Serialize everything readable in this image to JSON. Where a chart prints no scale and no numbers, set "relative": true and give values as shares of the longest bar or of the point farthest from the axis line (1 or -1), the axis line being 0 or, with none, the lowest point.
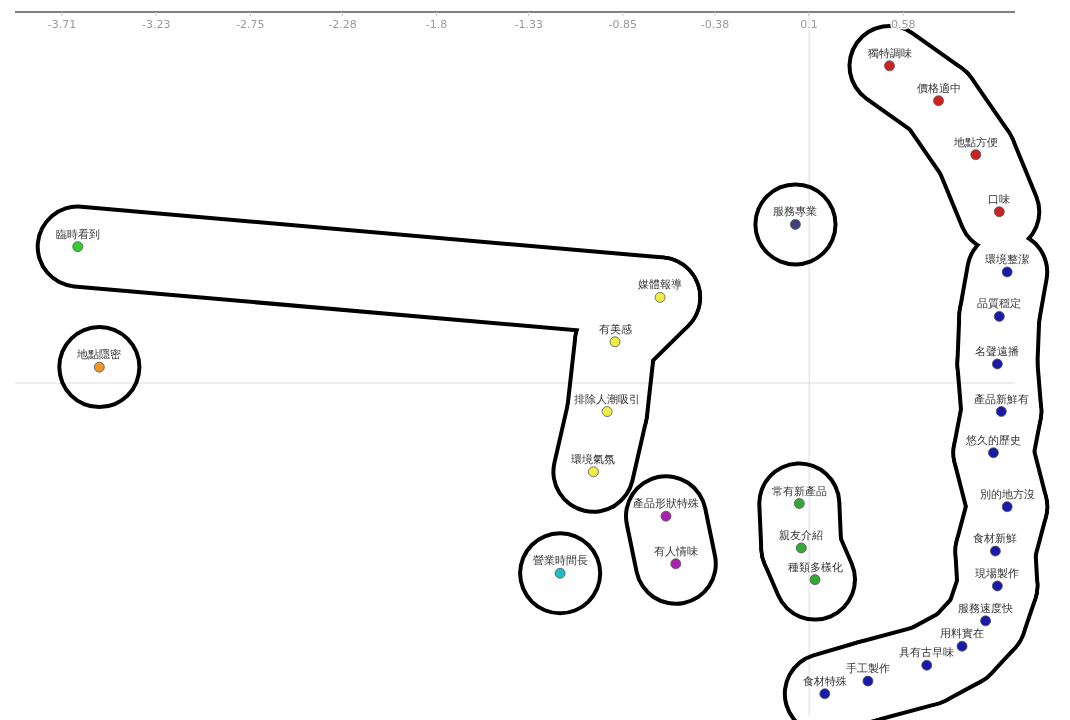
{
  "chart_data": {
    "type": "scatter",
    "relative": true,
    "marker": "circle",
    "tick_labels": "x",
    "xlim": [
      -3.95,
      1.15
    ],
    "xticks": [
      -3.71,
      -3.23,
      -2.75,
      -2.28,
      -1.8,
      -1.33,
      -0.85,
      -0.38,
      0.1,
      0.58
    ],
    "ref_lines": [
      {
        "axis": "x",
        "value": 0.1,
        "color": "#dddddd"
      }
    ],
    "series": [
      {
        "color": "#cc2222",
        "x": [
          0.51,
          0.76,
          0.95,
          1.07
        ],
        "values": [
          1.0,
          0.89,
          0.72,
          0.54
        ]
      },
      {
        "color": "#404080",
        "x": [
          0.03
        ],
        "values": [
          0.5
        ]
      },
      {
        "colors": [
          "#33cc33",
          "#eeee44",
          "#eeee44",
          "#eeee44",
          "#eeee44"
        ],
        "x": [
          -3.63,
          -0.66,
          -0.89,
          -0.93,
          -1.0
        ],
        "values": [
          0.43,
          0.27,
          0.13,
          -0.09,
          -0.28
        ]
      },
      {
        "color": "#ee9922",
        "x": [
          -3.52
        ],
        "values": [
          0.05
        ]
      },
      {
        "color": "#aa22aa",
        "x": [
          -0.63,
          -0.58
        ],
        "values": [
          -0.42,
          -0.57
        ]
      },
      {
        "color": "#22bbcc",
        "x": [
          -1.17
        ],
        "values": [
          -0.6
        ]
      },
      {
        "color": "#33aa33",
        "x": [
          0.05,
          0.06,
          0.13
        ],
        "values": [
          -0.38,
          -0.52,
          -0.62
        ]
      },
      {
        "color": "#1a1aaa",
        "x": [
          1.11,
          1.07,
          1.06,
          1.08,
          1.04,
          1.11,
          1.05,
          1.06,
          1.0,
          0.88,
          0.7,
          0.4,
          0.18
        ],
        "values": [
          0.35,
          0.21,
          0.06,
          -0.09,
          -0.22,
          -0.39,
          -0.53,
          -0.64,
          -0.75,
          -0.83,
          -0.89,
          -0.94,
          -0.98
        ]
      }
    ],
    "annotations": [
      {
        "text": "獨特調味",
        "x": 0.51,
        "y": 1.0
      },
      {
        "text": "價格適中",
        "x": 0.76,
        "y": 0.89
      },
      {
        "text": "地點方便",
        "x": 0.95,
        "y": 0.72
      },
      {
        "text": "口味",
        "x": 1.07,
        "y": 0.54
      },
      {
        "text": "服務專業",
        "x": 0.03,
        "y": 0.5
      },
      {
        "text": "臨時看到",
        "x": -3.63,
        "y": 0.43
      },
      {
        "text": "媒體報導",
        "x": -0.66,
        "y": 0.27
      },
      {
        "text": "有美感",
        "x": -0.89,
        "y": 0.13
      },
      {
        "text": "排除人潮吸引",
        "x": -0.93,
        "y": -0.09
      },
      {
        "text": "環境氣氛",
        "x": -1.0,
        "y": -0.28
      },
      {
        "text": "地點隱密",
        "x": -3.52,
        "y": 0.05
      },
      {
        "text": "產品形狀特殊",
        "x": -0.63,
        "y": -0.42
      },
      {
        "text": "有人情味",
        "x": -0.58,
        "y": -0.57
      },
      {
        "text": "營業時間長",
        "x": -1.17,
        "y": -0.6
      },
      {
        "text": "常有新產品",
        "x": 0.05,
        "y": -0.38
      },
      {
        "text": "親友介紹",
        "x": 0.06,
        "y": -0.52
      },
      {
        "text": "種類多樣化",
        "x": 0.13,
        "y": -0.62
      },
      {
        "text": "環境整潔",
        "x": 1.11,
        "y": 0.35
      },
      {
        "text": "品質穩定",
        "x": 1.07,
        "y": 0.21
      },
      {
        "text": "名聲遠播",
        "x": 1.06,
        "y": 0.06
      },
      {
        "text": "產品新鮮有",
        "x": 1.08,
        "y": -0.09
      },
      {
        "text": "悠久的歷史",
        "x": 1.04,
        "y": -0.22
      },
      {
        "text": "別的地方沒",
        "x": 1.11,
        "y": -0.39
      },
      {
        "text": "食材新鮮",
        "x": 1.05,
        "y": -0.53
      },
      {
        "text": "現場製作",
        "x": 1.06,
        "y": -0.64
      },
      {
        "text": "服務速度快",
        "x": 1.0,
        "y": -0.75
      },
      {
        "text": "用料實在",
        "x": 0.88,
        "y": -0.83
      },
      {
        "text": "具有古早味",
        "x": 0.7,
        "y": -0.89
      },
      {
        "text": "手工製作",
        "x": 0.4,
        "y": -0.94
      },
      {
        "text": "食材特殊",
        "x": 0.18,
        "y": -0.98
      }
    ]
  }
}
